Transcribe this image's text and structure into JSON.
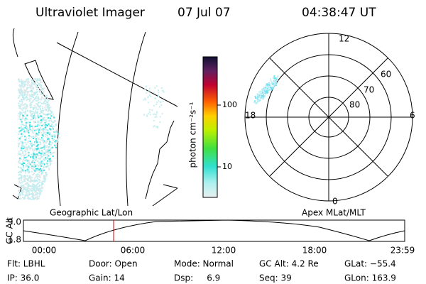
{
  "header": {
    "title": "Ultraviolet Imager",
    "date": "07 Jul 07",
    "time": "04:38:47 UT"
  },
  "colorbar": {
    "label": "photon cm⁻²s⁻¹",
    "ticks": [
      "100",
      "10"
    ]
  },
  "map": {
    "label": "Geographic Lat/Lon"
  },
  "polar": {
    "label": "Apex MLat/MLT",
    "mlt": [
      "12",
      "18",
      "6",
      "0"
    ],
    "mlat": [
      "60",
      "70",
      "80"
    ]
  },
  "altitude": {
    "label": "GC Alt",
    "yticks": [
      "9.0",
      "1.8"
    ],
    "xticks": [
      "00:00",
      "06:00",
      "12:00",
      "18:00",
      "23:59"
    ]
  },
  "footer": {
    "rows": [
      [
        "Flt: LBHL",
        "Door: Open",
        "Mode: Normal",
        "GC Alt: 4.2 Re",
        "GLat: −55.4"
      ],
      [
        "IP: 36.0",
        "Gain: 14",
        "Dsp:     6.9",
        "Seq: 39",
        "GLon: 163.9"
      ]
    ]
  }
}
